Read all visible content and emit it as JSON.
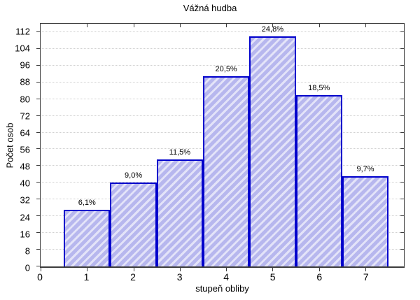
{
  "chart_data": {
    "type": "bar",
    "title": "Vážná hudba",
    "xlabel": "stupeň obliby",
    "ylabel": "Počet osob",
    "categories": [
      1,
      2,
      3,
      4,
      5,
      6,
      7
    ],
    "values": [
      27,
      40,
      51,
      91,
      110,
      82,
      43
    ],
    "bar_labels": [
      "6,1%",
      "9,0%",
      "11,5%",
      "20,5%",
      "24,8%",
      "18,5%",
      "9,7%"
    ],
    "bar_width": 1,
    "x_ticks": [
      0,
      1,
      2,
      3,
      4,
      5,
      6,
      7
    ],
    "y_ticks": [
      0,
      8,
      16,
      24,
      32,
      40,
      48,
      56,
      64,
      72,
      80,
      88,
      96,
      104,
      112
    ],
    "xlim": [
      0,
      7.83
    ],
    "ylim": [
      0,
      116
    ],
    "grid": "horizontal-dotted",
    "legend": "none",
    "colors": {
      "background": "#ffffff",
      "frame": "#3c3c3c",
      "grid": "#d0d0d0",
      "bar_border": "#0000cc",
      "bar_fill_stripe": "#b7b7ee",
      "bar_fill_light": "#e3e3f8",
      "text": "#000000"
    }
  }
}
